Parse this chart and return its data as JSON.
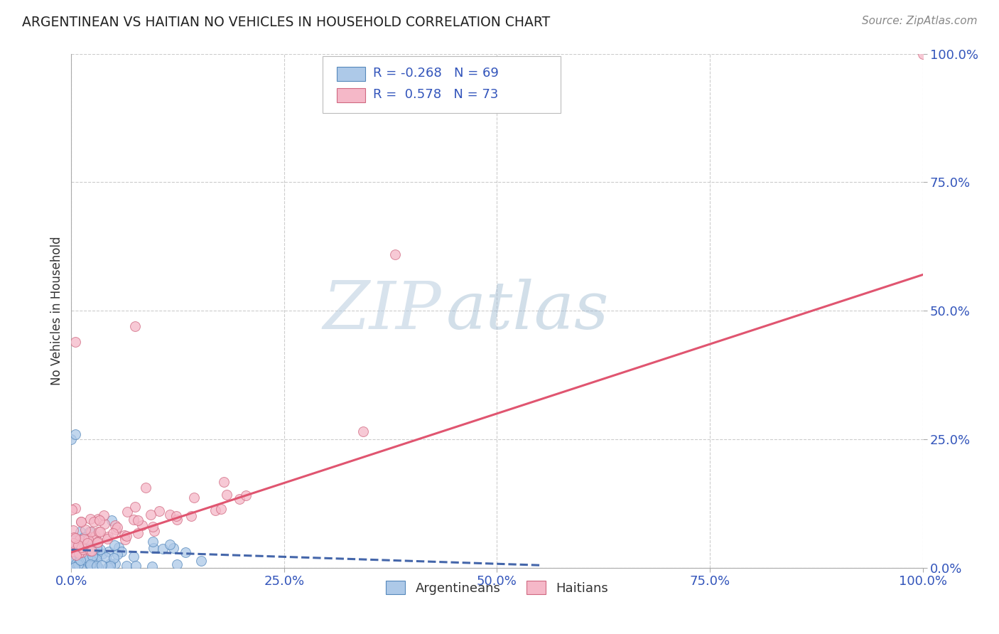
{
  "title": "ARGENTINEAN VS HAITIAN NO VEHICLES IN HOUSEHOLD CORRELATION CHART",
  "source": "Source: ZipAtlas.com",
  "ylabel": "No Vehicles in Household",
  "color_arg": "#adc9e8",
  "color_hai": "#f5b8c8",
  "color_arg_edge": "#5588bb",
  "color_hai_edge": "#d06880",
  "color_arg_line": "#4466aa",
  "color_hai_line": "#e05570",
  "color_tick": "#3355bb",
  "color_grid": "#cccccc",
  "watermark_color": "#dce8f5",
  "watermark_zip_color": "#c8d8ee",
  "background": "#ffffff",
  "title_color": "#222222",
  "source_color": "#888888",
  "ylabel_color": "#333333",
  "legend_box_color": "#dddddd",
  "legend_text_color": "#3355bb",
  "bottom_legend_color": "#333333",
  "marker_size": 100,
  "marker_alpha": 0.75,
  "arg_line_x0": 0.0,
  "arg_line_x1": 0.55,
  "arg_line_y0": 0.035,
  "arg_line_y1": 0.005,
  "hai_line_x0": 0.0,
  "hai_line_x1": 1.0,
  "hai_line_y0": 0.03,
  "hai_line_y1": 0.57,
  "xlim_min": 0.0,
  "xlim_max": 1.0,
  "ylim_min": 0.0,
  "ylim_max": 1.0
}
